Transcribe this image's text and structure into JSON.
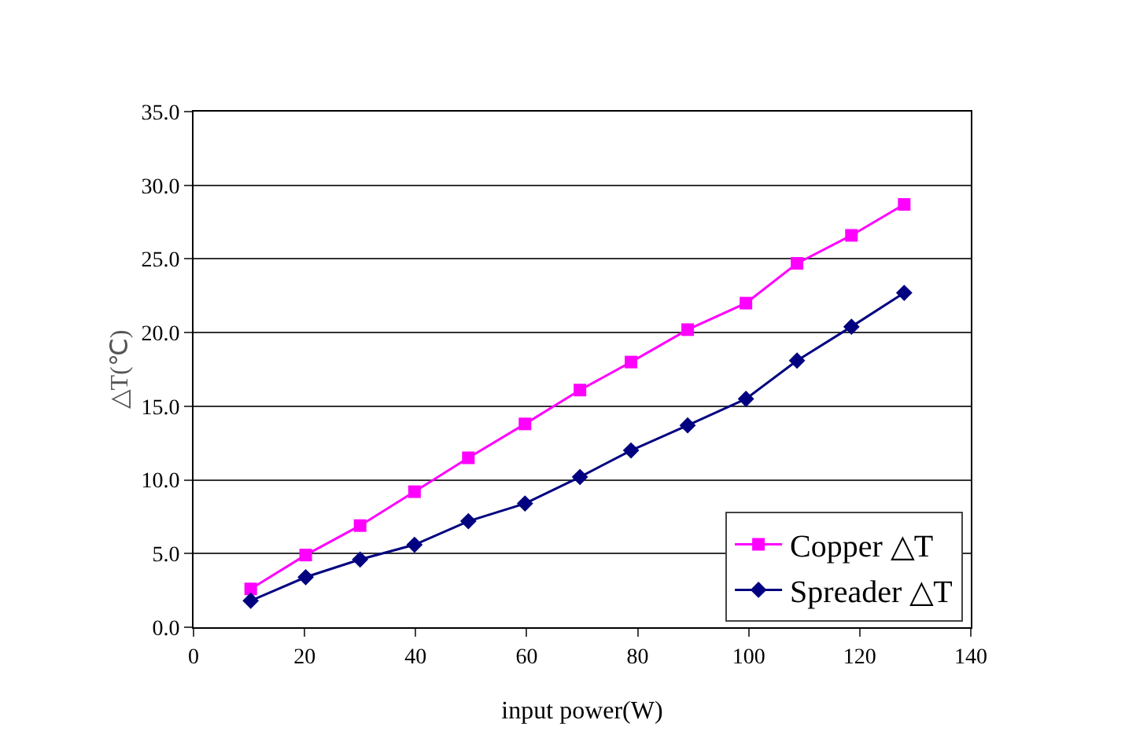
{
  "chart_data": {
    "type": "line",
    "xlabel": "input power(W)",
    "ylabel": "△T(℃)",
    "x": [
      10.3,
      20.2,
      30,
      39.8,
      49.5,
      59.7,
      69.6,
      78.8,
      89,
      99.5,
      108.7,
      118.5,
      128
    ],
    "series": [
      {
        "name": "Copper △T",
        "color": "#ff00ff",
        "marker": "square",
        "values": [
          2.6,
          4.9,
          6.9,
          9.2,
          11.5,
          13.8,
          16.1,
          18.0,
          20.2,
          22.0,
          24.7,
          26.6,
          28.7
        ]
      },
      {
        "name": "Spreader △T",
        "color": "#000080",
        "marker": "diamond",
        "values": [
          1.8,
          3.4,
          4.6,
          5.6,
          7.2,
          8.4,
          10.2,
          12.0,
          13.7,
          15.5,
          18.1,
          20.4,
          22.7
        ]
      }
    ],
    "xlim": [
      0,
      140
    ],
    "xticks": [
      0,
      20,
      40,
      60,
      80,
      100,
      120,
      140
    ],
    "ylim": [
      0,
      35
    ],
    "yticks": [
      {
        "value": 0,
        "label": "0.0"
      },
      {
        "value": 5,
        "label": "5.0"
      },
      {
        "value": 10,
        "label": "10.0"
      },
      {
        "value": 15,
        "label": "15.0"
      },
      {
        "value": 20,
        "label": "20.0"
      },
      {
        "value": 25,
        "label": "25.0"
      },
      {
        "value": 30,
        "label": "30.0"
      },
      {
        "value": 35,
        "label": "35.0"
      }
    ],
    "grid": "y",
    "legend": "bottom right",
    "line_style": "solid"
  }
}
